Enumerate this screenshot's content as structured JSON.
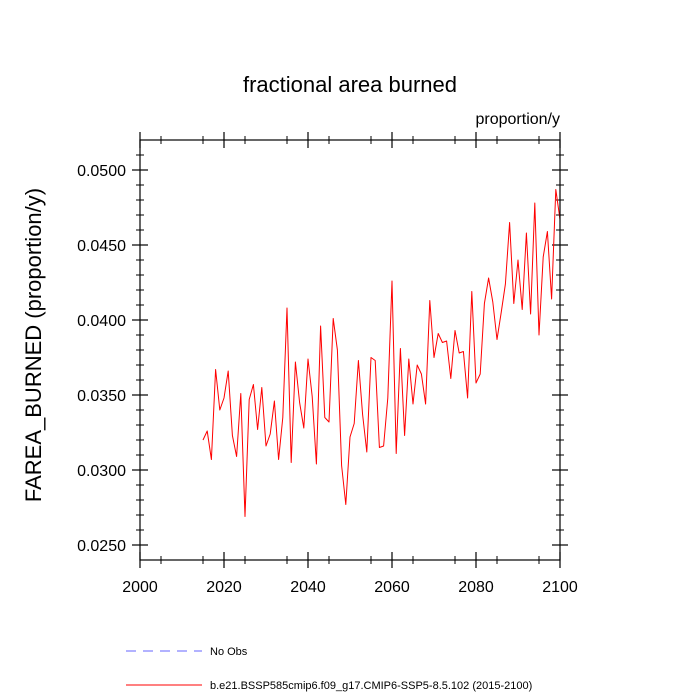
{
  "chart_data": {
    "type": "line",
    "title": "fractional area burned",
    "units": "proportion/y",
    "xlabel": "",
    "ylabel": "FAREA_BURNED  (proportion/y)",
    "xlim": [
      2000,
      2100
    ],
    "ylim": [
      0.024,
      0.052
    ],
    "x_ticks": [
      2000,
      2020,
      2040,
      2060,
      2080,
      2100
    ],
    "x_tick_labels": [
      "2000",
      "2020",
      "2040",
      "2060",
      "2080",
      "2100"
    ],
    "y_ticks": [
      0.025,
      0.03,
      0.035,
      0.04,
      0.045,
      0.05
    ],
    "y_tick_labels": [
      "0.0250",
      "0.0300",
      "0.0350",
      "0.0400",
      "0.0450",
      "0.0500"
    ],
    "series": [
      {
        "name": "b.e21.BSSP585cmip6.f09_g17.CMIP6-SSP5-8.5.102 (2015-2100)",
        "color": "#ff0000",
        "style": "solid",
        "x": [
          2015,
          2016,
          2017,
          2018,
          2019,
          2020,
          2021,
          2022,
          2023,
          2024,
          2025,
          2026,
          2027,
          2028,
          2029,
          2030,
          2031,
          2032,
          2033,
          2034,
          2035,
          2036,
          2037,
          2038,
          2039,
          2040,
          2041,
          2042,
          2043,
          2044,
          2045,
          2046,
          2047,
          2048,
          2049,
          2050,
          2051,
          2052,
          2053,
          2054,
          2055,
          2056,
          2057,
          2058,
          2059,
          2060,
          2061,
          2062,
          2063,
          2064,
          2065,
          2066,
          2067,
          2068,
          2069,
          2070,
          2071,
          2072,
          2073,
          2074,
          2075,
          2076,
          2077,
          2078,
          2079,
          2080,
          2081,
          2082,
          2083,
          2084,
          2085,
          2086,
          2087,
          2088,
          2089,
          2090,
          2091,
          2092,
          2093,
          2094,
          2095,
          2096,
          2097,
          2098,
          2099,
          2100
        ],
        "values": [
          0.032,
          0.0326,
          0.0307,
          0.0367,
          0.034,
          0.0348,
          0.0366,
          0.0323,
          0.0309,
          0.0351,
          0.0269,
          0.0347,
          0.0357,
          0.0327,
          0.0355,
          0.0316,
          0.0324,
          0.0346,
          0.0307,
          0.0335,
          0.0408,
          0.0305,
          0.0372,
          0.0345,
          0.0328,
          0.0374,
          0.0349,
          0.0304,
          0.0396,
          0.0335,
          0.0332,
          0.0401,
          0.038,
          0.0303,
          0.0277,
          0.0322,
          0.0331,
          0.0373,
          0.0337,
          0.0312,
          0.0375,
          0.0373,
          0.0315,
          0.0316,
          0.0348,
          0.0426,
          0.0311,
          0.0381,
          0.0323,
          0.0374,
          0.0344,
          0.037,
          0.0364,
          0.0344,
          0.0413,
          0.0375,
          0.0391,
          0.0385,
          0.0386,
          0.0361,
          0.0393,
          0.0378,
          0.0379,
          0.0348,
          0.0419,
          0.0358,
          0.0364,
          0.0411,
          0.0428,
          0.0412,
          0.0387,
          0.0405,
          0.0424,
          0.0465,
          0.0411,
          0.044,
          0.0407,
          0.0458,
          0.0404,
          0.0478,
          0.039,
          0.0442,
          0.0459,
          0.0414,
          0.0487,
          0.0467
        ]
      },
      {
        "name": "No Obs",
        "color": "#6666ff",
        "style": "dashed",
        "x": [],
        "values": []
      }
    ],
    "legend": {
      "placement": "bottom-left",
      "entries": [
        {
          "label": "No Obs",
          "color": "#6666ff",
          "style": "dashed"
        },
        {
          "label": "b.e21.BSSP585cmip6.f09_g17.CMIP6-SSP5-8.5.102 (2015-2100)",
          "color": "#ff0000",
          "style": "solid"
        }
      ]
    }
  }
}
